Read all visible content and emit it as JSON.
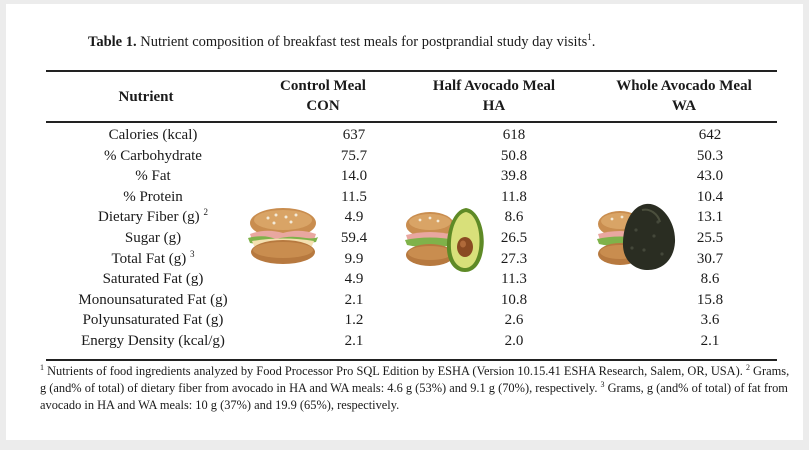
{
  "table": {
    "label": "Table 1.",
    "caption": "Nutrient composition of breakfast test meals for postprandial study day visits",
    "caption_ref": "1",
    "caption_end": ".",
    "headers": {
      "nutrient": "Nutrient",
      "con_line1": "Control Meal",
      "con_line2": "CON",
      "ha_line1": "Half Avocado Meal",
      "ha_line2": "HA",
      "wa_line1": "Whole Avocado Meal",
      "wa_line2": "WA"
    },
    "rows": [
      {
        "name": "Calories (kcal)",
        "sup": "",
        "con": "637",
        "ha": "618",
        "wa": "642"
      },
      {
        "name": "% Carbohydrate",
        "sup": "",
        "con": "75.7",
        "ha": "50.8",
        "wa": "50.3"
      },
      {
        "name": "% Fat",
        "sup": "",
        "con": "14.0",
        "ha": "39.8",
        "wa": "43.0"
      },
      {
        "name": "% Protein",
        "sup": "",
        "con": "11.5",
        "ha": "11.8",
        "wa": "10.4"
      },
      {
        "name": "Dietary Fiber (g)",
        "sup": "2",
        "con": "4.9",
        "ha": "8.6",
        "wa": "13.1"
      },
      {
        "name": "Sugar (g)",
        "sup": "",
        "con": "59.4",
        "ha": "26.5",
        "wa": "25.5"
      },
      {
        "name": "Total Fat (g)",
        "sup": "3",
        "con": "9.9",
        "ha": "27.3",
        "wa": "30.7"
      },
      {
        "name": "Saturated Fat (g)",
        "sup": "",
        "con": "4.9",
        "ha": "11.3",
        "wa": "8.6"
      },
      {
        "name": "Monounsaturated Fat (g)",
        "sup": "",
        "con": "2.1",
        "ha": "10.8",
        "wa": "15.8"
      },
      {
        "name": "Polyunsaturated Fat (g)",
        "sup": "",
        "con": "1.2",
        "ha": "2.6",
        "wa": "3.6"
      },
      {
        "name": "Energy Density (kcal/g)",
        "sup": "",
        "con": "2.1",
        "ha": "2.0",
        "wa": "2.1"
      }
    ],
    "footnote": {
      "m1": "1",
      "t1": " Nutrients of food ingredients analyzed by Food Processor Pro SQL Edition by ESHA (Version 10.15.41 ESHA Research, Salem, OR, USA). ",
      "m2": "2",
      "t2": " Grams, g (and% of total) of dietary fiber from avocado in HA and WA meals: 4.6 g (53%) and 9.1 g (70%), respectively. ",
      "m3": "3",
      "t3": " Grams, g (and% of total) of fat from avocado in HA and WA meals: 10 g (37%) and 19.9 (65%), respectively."
    }
  },
  "colors": {
    "background": "#ececec",
    "paper": "#ffffff",
    "text": "#1a1a1a",
    "bagel": "#c98d4f",
    "avocado_skin_green": "#5e8a26",
    "avocado_flesh": "#d8e07a",
    "avocado_pit": "#8a4a22",
    "avocado_skin_dark": "#2a2d22"
  },
  "icons": {
    "con_image": "bagel-sandwich-icon",
    "ha_image": "bagel-with-half-avocado-icon",
    "wa_image": "bagel-with-whole-avocado-icon"
  }
}
